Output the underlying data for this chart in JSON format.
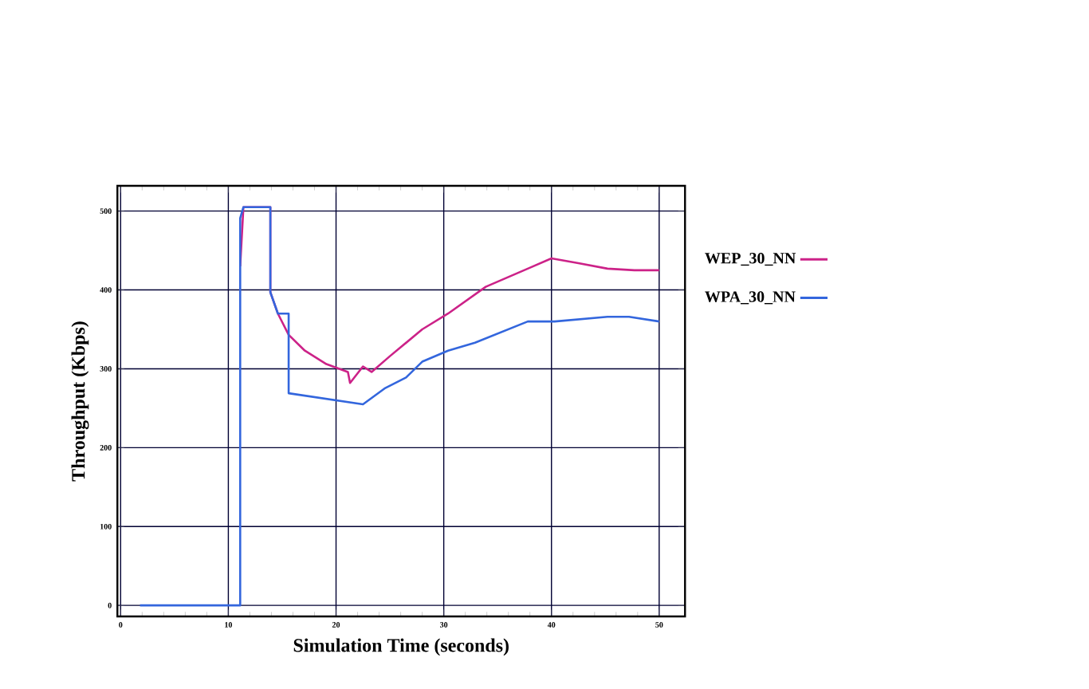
{
  "chart_data": {
    "type": "line",
    "xlabel": "Simulation Time (seconds)",
    "ylabel": "Throughput (Kbps)",
    "xlim": [
      -0.3,
      52.4
    ],
    "ylim": [
      -14,
      532
    ],
    "xticks": [
      0,
      10,
      20,
      30,
      40,
      50
    ],
    "yticks": [
      0,
      100,
      200,
      300,
      400,
      500
    ],
    "grid": true,
    "legend": "right",
    "line_style": "solid",
    "marker": "none",
    "series": [
      {
        "name": "WEP_30_NN",
        "color": "#cc2288",
        "x": [
          11.1,
          11.4,
          13.9,
          13.9,
          14.6,
          15.6,
          17.1,
          19.1,
          21.1,
          21.3,
          22.5,
          23.3,
          25,
          28,
          30.4,
          33.9,
          37.8,
          40,
          42.5,
          45.2,
          47.7,
          50
        ],
        "values": [
          430,
          505,
          505,
          397,
          370,
          343,
          323,
          306,
          296,
          282,
          303,
          296,
          316,
          350,
          370,
          404,
          427,
          440,
          434,
          427,
          425,
          425
        ]
      },
      {
        "name": "WPA_30_NN",
        "color": "#3366dd",
        "x": [
          1.8,
          11.1,
          11.1,
          11.4,
          13.9,
          13.9,
          14.6,
          15.6,
          15.6,
          22.5,
          24.5,
          26.5,
          28,
          30.4,
          32.9,
          37.8,
          40.3,
          45.2,
          47.2,
          50
        ],
        "values": [
          0,
          0,
          491,
          505,
          505,
          397,
          370,
          370,
          269,
          255,
          275,
          289,
          309,
          323,
          333,
          360,
          360,
          366,
          366,
          360
        ]
      }
    ]
  }
}
